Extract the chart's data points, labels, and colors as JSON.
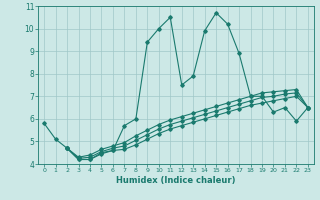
{
  "bg_color": "#cce8e6",
  "grid_color": "#a0c8c8",
  "line_color": "#1a7a6e",
  "xlabel": "Humidex (Indice chaleur)",
  "xlim": [
    -0.5,
    23.5
  ],
  "ylim": [
    4,
    11
  ],
  "yticks": [
    4,
    5,
    6,
    7,
    8,
    9,
    10,
    11
  ],
  "xticks": [
    0,
    1,
    2,
    3,
    4,
    5,
    6,
    7,
    8,
    9,
    10,
    11,
    12,
    13,
    14,
    15,
    16,
    17,
    18,
    19,
    20,
    21,
    22,
    23
  ],
  "line1_x": [
    0,
    1,
    2,
    3,
    4,
    5,
    6,
    7,
    8,
    9,
    10,
    11,
    12,
    13,
    14,
    15,
    16,
    17,
    18,
    19,
    20,
    21,
    22,
    23
  ],
  "line1_y": [
    5.8,
    5.1,
    4.7,
    4.2,
    4.2,
    4.5,
    4.6,
    5.7,
    6.0,
    9.4,
    10.0,
    10.5,
    7.5,
    7.9,
    9.9,
    10.7,
    10.2,
    8.9,
    7.0,
    7.0,
    6.3,
    6.5,
    5.9,
    6.5
  ],
  "line2_x": [
    2,
    3,
    4,
    5,
    6,
    7,
    8,
    9,
    10,
    11,
    12,
    13,
    14,
    15,
    16,
    17,
    18,
    19,
    20,
    21,
    22,
    23
  ],
  "line2_y": [
    4.7,
    4.2,
    4.2,
    4.45,
    4.6,
    4.65,
    4.85,
    5.1,
    5.35,
    5.55,
    5.7,
    5.85,
    6.0,
    6.15,
    6.3,
    6.45,
    6.6,
    6.7,
    6.8,
    6.9,
    7.0,
    6.5
  ],
  "line3_x": [
    2,
    3,
    4,
    5,
    6,
    7,
    8,
    9,
    10,
    11,
    12,
    13,
    14,
    15,
    16,
    17,
    18,
    19,
    20,
    21,
    22,
    23
  ],
  "line3_y": [
    4.7,
    4.25,
    4.3,
    4.55,
    4.7,
    4.8,
    5.05,
    5.3,
    5.55,
    5.75,
    5.9,
    6.05,
    6.2,
    6.35,
    6.5,
    6.65,
    6.8,
    6.95,
    7.0,
    7.1,
    7.15,
    6.5
  ],
  "line4_x": [
    2,
    3,
    4,
    5,
    6,
    7,
    8,
    9,
    10,
    11,
    12,
    13,
    14,
    15,
    16,
    17,
    18,
    19,
    20,
    21,
    22,
    23
  ],
  "line4_y": [
    4.7,
    4.3,
    4.4,
    4.65,
    4.8,
    4.95,
    5.25,
    5.5,
    5.75,
    5.95,
    6.1,
    6.25,
    6.4,
    6.55,
    6.7,
    6.85,
    7.0,
    7.15,
    7.2,
    7.25,
    7.3,
    6.5
  ]
}
